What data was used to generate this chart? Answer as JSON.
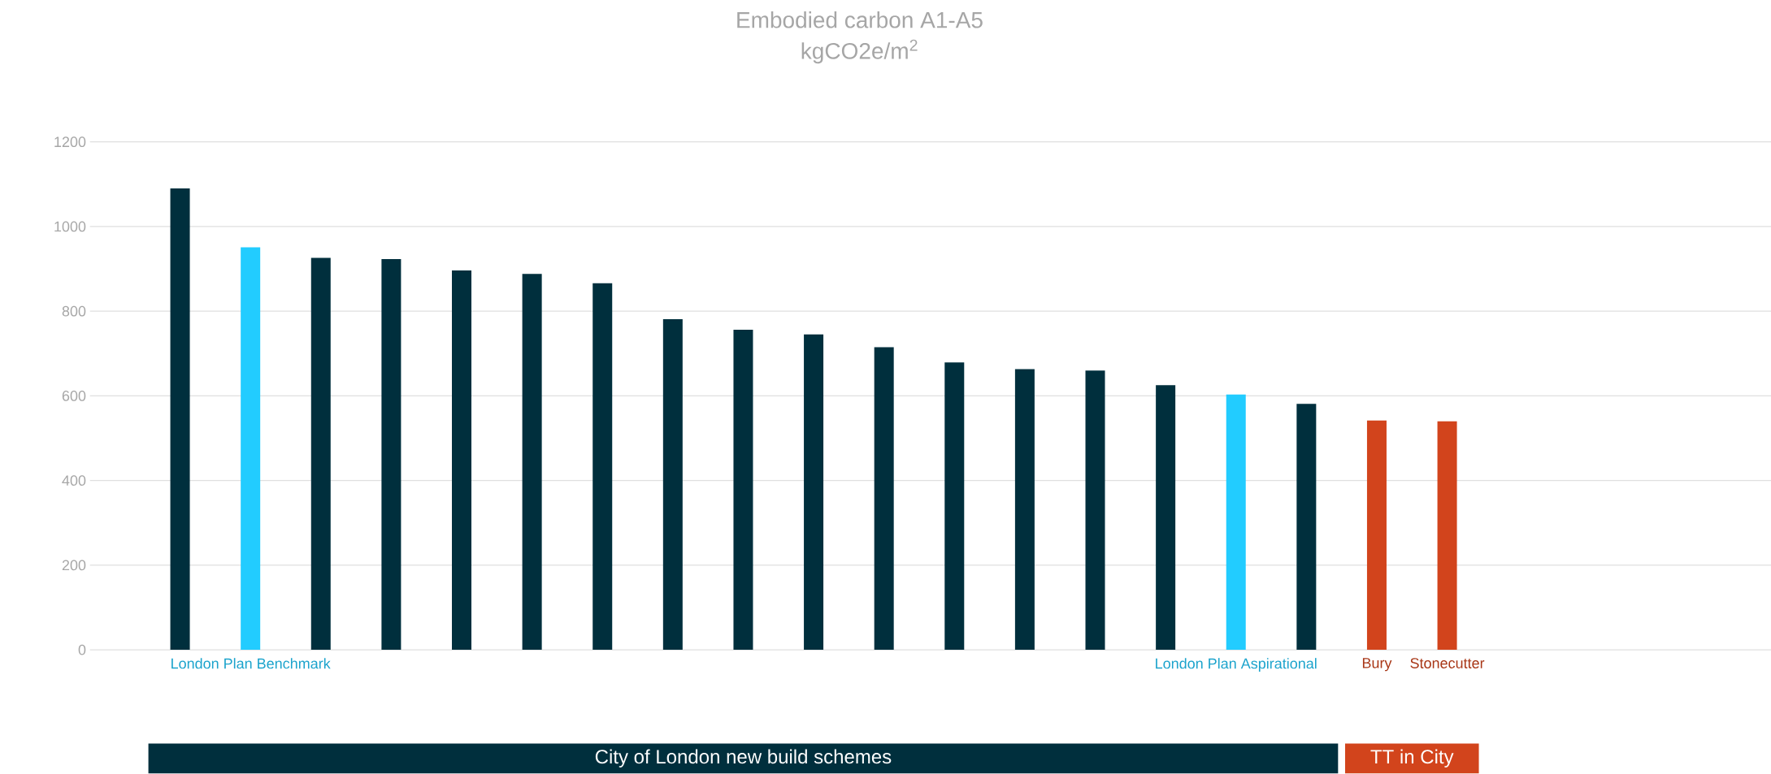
{
  "chart_data": {
    "type": "bar",
    "title": "Embodied carbon A1-A5",
    "subtitle": "kgCO2e/m$^{2}$",
    "categories": [
      null,
      "London Plan Benchmark",
      null,
      null,
      null,
      null,
      null,
      null,
      null,
      null,
      null,
      null,
      null,
      null,
      null,
      "London Plan Aspirational",
      null,
      "Bury",
      "Stonecutter"
    ],
    "values": [
      1090,
      951,
      926,
      923,
      896,
      888,
      866,
      781,
      756,
      745,
      715,
      679,
      663,
      660,
      625,
      603,
      581,
      542,
      540
    ],
    "colors": [
      "#002f3d",
      "#22ccff",
      "#002f3d",
      "#002f3d",
      "#002f3d",
      "#002f3d",
      "#002f3d",
      "#002f3d",
      "#002f3d",
      "#002f3d",
      "#002f3d",
      "#002f3d",
      "#002f3d",
      "#002f3d",
      "#002f3d",
      "#22ccff",
      "#002f3d",
      "#d2441c",
      "#d2441c"
    ],
    "ylim": [
      0,
      1200
    ],
    "yticks": [
      0,
      200,
      400,
      600,
      800,
      1000,
      1200
    ],
    "grid": "y",
    "annotations": [
      "City of London new build schemes",
      "TT in City"
    ]
  }
}
